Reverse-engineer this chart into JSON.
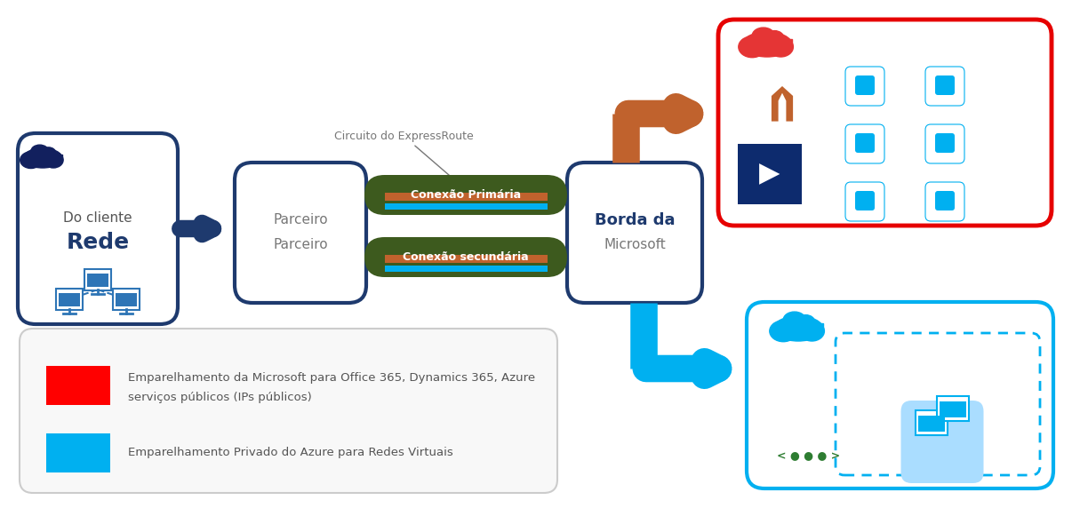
{
  "bg_color": "#ffffff",
  "dark_blue": "#1e3a6e",
  "light_blue": "#00b0f0",
  "tube_green": "#3d5a1e",
  "orange": "#c0622d",
  "red": "#e60000",
  "deep_red": "#cc0000",
  "navy": "#12205e",
  "gray_text": "#595959",
  "green_icon": "#2e7d32",
  "client_label1": "Do cliente",
  "client_label2": "Rede",
  "partner_label1": "Parceiro",
  "partner_label2": "Parceiro",
  "borda_label1": "Borda da",
  "borda_label2": "Microsoft",
  "primary_conn": "Conexão Primária",
  "secondary_conn": "Conexão secundária",
  "circuit_label": "Circuito do ExpressRoute",
  "legend_red1": "Emparelhamento da Microsoft para Office 365, Dynamics 365, Azure",
  "legend_red2": "serviços públicos (IPs públicos)",
  "legend_blue": "Emparelhamento Privado do Azure para Redes Virtuais"
}
